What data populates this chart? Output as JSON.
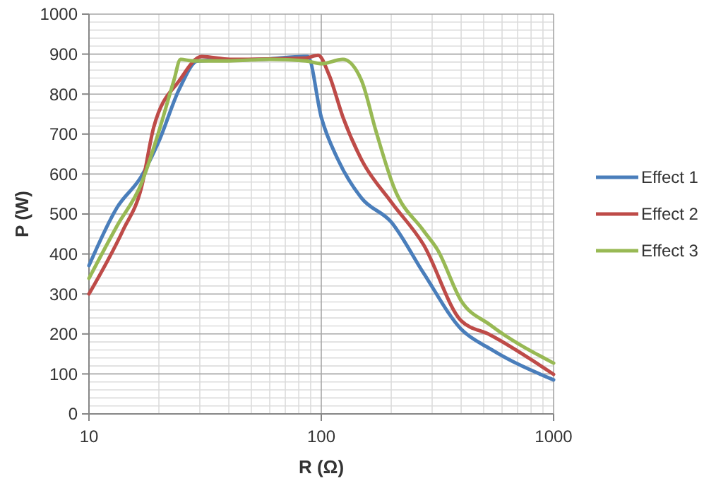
{
  "chart_data": {
    "type": "line",
    "xlabel": "R (Ω)",
    "ylabel": "P (W)",
    "log": "x",
    "grid": true,
    "legend": "right",
    "line_style": "solid",
    "marker": "none",
    "xlim": [
      10,
      1000
    ],
    "xticks": [
      10,
      100,
      1000
    ],
    "ylim": [
      0,
      1000
    ],
    "yticks": [
      0,
      100,
      200,
      300,
      400,
      500,
      600,
      700,
      800,
      900,
      1000
    ],
    "series": [
      {
        "name": "Effect 1",
        "color": "#4a7ebb",
        "x": [
          10,
          13.2,
          16.8,
          20,
          24.5,
          29.4,
          60,
          84,
          87.5,
          100,
          118,
          149,
          200,
          275,
          400,
          532,
          1000
        ],
        "values": [
          371,
          516,
          594,
          682,
          813,
          883,
          888,
          894,
          894,
          742,
          636,
          540,
          480,
          353,
          212,
          163,
          85
        ]
      },
      {
        "name": "Effect 2",
        "color": "#be4b48",
        "x": [
          10,
          14,
          16.8,
          19,
          24.5,
          30.6,
          40.5,
          60,
          85,
          97,
          108,
          124,
          149,
          200,
          275,
          400,
          532,
          1000
        ],
        "values": [
          300,
          459,
          565,
          717,
          834,
          894,
          887,
          888,
          890,
          897,
          848,
          742,
          636,
          530,
          424,
          233,
          198,
          99
        ]
      },
      {
        "name": "Effect 3",
        "color": "#98b954",
        "x": [
          10,
          13.2,
          16.8,
          20,
          23.2,
          24.8,
          28,
          40,
          60,
          86,
          100,
          124,
          149,
          172,
          206,
          275,
          317,
          400,
          532,
          1000
        ],
        "values": [
          339,
          470,
          576,
          707,
          834,
          887,
          883,
          883,
          887,
          883,
          876,
          887,
          834,
          707,
          565,
          459,
          410,
          283,
          223,
          127
        ]
      }
    ]
  }
}
